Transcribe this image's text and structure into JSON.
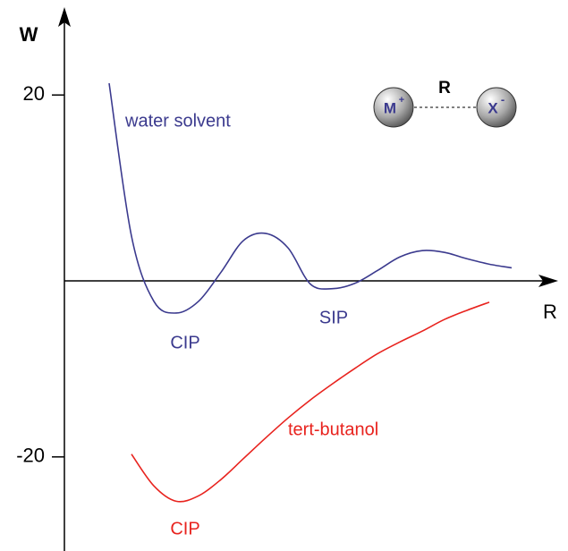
{
  "chart_data": {
    "type": "line",
    "y_label": "W",
    "x_label": "R",
    "categories": [
      null,
      null,
      null,
      null,
      null,
      null,
      null,
      null,
      null,
      null,
      null,
      null,
      null,
      null,
      null,
      null,
      null,
      null,
      null
    ],
    "series": [
      {
        "name": "water solvent",
        "color": "#3b3a8e",
        "values": [
          21.3,
          4.4,
          -2.8,
          -4.1,
          -2.8,
          0.4,
          3.9,
          4.7,
          3.1,
          -0.9,
          -1.4,
          -0.8,
          0.6,
          2.1,
          2.8,
          2.6,
          1.9,
          1.3,
          0.9
        ]
      },
      {
        "name": "tert-butanol",
        "color": "#e8231e",
        "values": [
          null,
          -19.7,
          -23.2,
          -24.9,
          -24.3,
          -22.5,
          -20.2,
          -17.9,
          -15.7,
          -13.7,
          -11.9,
          -10.2,
          -8.6,
          -7.3,
          -6.1,
          -4.8,
          -3.8,
          -2.9,
          null
        ]
      }
    ],
    "annotations": [
      "CIP",
      "SIP",
      "CIP"
    ],
    "inset": {
      "cation": "M",
      "cation_charge": "+",
      "distance": "R",
      "anion": "X",
      "anion_charge": "-"
    },
    "ylim": [
      -30.4,
      30.5
    ],
    "yticks": [
      -20,
      20
    ]
  }
}
